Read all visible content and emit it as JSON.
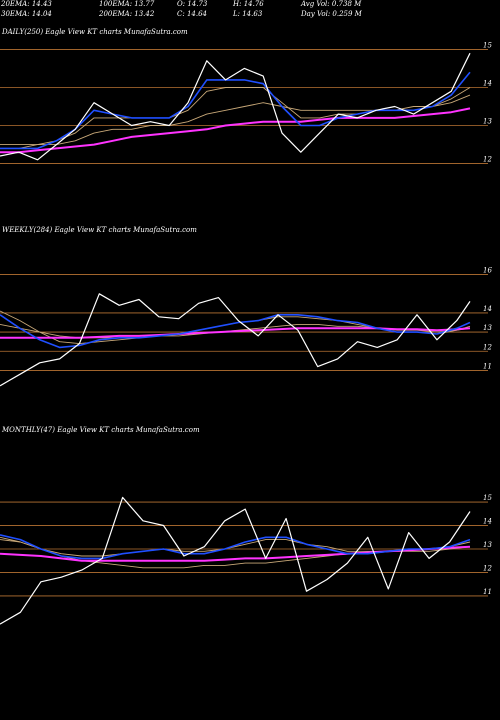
{
  "header": {
    "row1": [
      {
        "key": "ema20",
        "text": "20EMA: 14.43"
      },
      {
        "key": "ema100",
        "text": "100EMA: 13.77"
      },
      {
        "key": "open",
        "text": "O: 14.73"
      },
      {
        "key": "high",
        "text": "H: 14.76"
      },
      {
        "key": "avgvol",
        "text": "Avg Vol: 0.738 M"
      }
    ],
    "row2": [
      {
        "key": "ema30",
        "text": "30EMA: 14.04"
      },
      {
        "key": "ema200",
        "text": "200EMA: 13.42"
      },
      {
        "key": "close",
        "text": "C: 14.64"
      },
      {
        "key": "low",
        "text": "L: 14.63"
      },
      {
        "key": "dayvol",
        "text": "Day Vol: 0.259 M"
      }
    ]
  },
  "colors": {
    "background": "#000000",
    "price": "#ffffff",
    "grid": "#b87333",
    "ema_fast": "#1f4fff",
    "ema_slow": "#ff33ff",
    "ema_other": "#c8a878"
  },
  "chart_data": [
    {
      "type": "line",
      "title": "DAILY(250) Eagle  View  KT charts MunafaSutra.com",
      "ylim": [
        11.7,
        15.3
      ],
      "ticks": [
        12,
        13,
        14,
        15
      ],
      "x": [
        0,
        10,
        20,
        30,
        40,
        50,
        60,
        70,
        80,
        90,
        100,
        110,
        120,
        130,
        140,
        150,
        160,
        170,
        180,
        190,
        200,
        210,
        220,
        230,
        240,
        250
      ],
      "series": [
        {
          "name": "price",
          "values": [
            12.2,
            12.3,
            12.1,
            12.5,
            12.9,
            13.6,
            13.3,
            13.0,
            13.1,
            13.0,
            13.6,
            14.7,
            14.2,
            14.5,
            14.3,
            12.8,
            12.3,
            12.8,
            13.3,
            13.2,
            13.4,
            13.5,
            13.3,
            13.6,
            13.9,
            14.9
          ]
        },
        {
          "name": "ema20",
          "values": [
            12.4,
            12.4,
            12.4,
            12.6,
            12.9,
            13.4,
            13.3,
            13.2,
            13.2,
            13.2,
            13.5,
            14.2,
            14.2,
            14.2,
            14.1,
            13.5,
            13.0,
            13.0,
            13.2,
            13.3,
            13.4,
            13.4,
            13.4,
            13.5,
            13.8,
            14.4
          ]
        },
        {
          "name": "ema30",
          "values": [
            12.5,
            12.5,
            12.5,
            12.6,
            12.8,
            13.2,
            13.2,
            13.2,
            13.2,
            13.2,
            13.4,
            13.9,
            14.0,
            14.0,
            14.0,
            13.6,
            13.2,
            13.2,
            13.3,
            13.3,
            13.4,
            13.4,
            13.4,
            13.5,
            13.7,
            14.0
          ]
        },
        {
          "name": "ema100",
          "values": [
            12.4,
            12.4,
            12.5,
            12.5,
            12.6,
            12.8,
            12.9,
            12.9,
            13.0,
            13.0,
            13.1,
            13.3,
            13.4,
            13.5,
            13.6,
            13.5,
            13.4,
            13.4,
            13.4,
            13.4,
            13.4,
            13.4,
            13.5,
            13.5,
            13.6,
            13.8
          ]
        },
        {
          "name": "ema200",
          "values": [
            12.3,
            12.3,
            12.35,
            12.4,
            12.45,
            12.5,
            12.6,
            12.7,
            12.75,
            12.8,
            12.85,
            12.9,
            13.0,
            13.05,
            13.1,
            13.1,
            13.1,
            13.15,
            13.2,
            13.2,
            13.2,
            13.2,
            13.25,
            13.3,
            13.35,
            13.45
          ]
        }
      ]
    },
    {
      "type": "line",
      "title": "WEEKLY(284) Eagle  View  KT charts MunafaSutra.com",
      "ylim": [
        10.5,
        16.5
      ],
      "ticks": [
        11,
        12,
        13,
        14,
        16
      ],
      "x": [
        0,
        12,
        24,
        36,
        48,
        60,
        72,
        84,
        96,
        108,
        120,
        132,
        144,
        156,
        168,
        180,
        192,
        204,
        216,
        228,
        240,
        252,
        264,
        276,
        284
      ],
      "series": [
        {
          "name": "price",
          "values": [
            10.2,
            10.8,
            11.4,
            11.6,
            12.4,
            15.0,
            14.4,
            14.7,
            13.8,
            13.7,
            14.5,
            14.8,
            13.6,
            12.8,
            13.9,
            13.1,
            11.2,
            11.6,
            12.5,
            12.2,
            12.6,
            13.9,
            12.6,
            13.6,
            14.6
          ]
        },
        {
          "name": "ema20",
          "values": [
            13.9,
            13.2,
            12.6,
            12.2,
            12.3,
            12.6,
            12.7,
            12.7,
            12.8,
            12.9,
            13.1,
            13.3,
            13.5,
            13.6,
            13.9,
            13.9,
            13.8,
            13.6,
            13.5,
            13.2,
            13.0,
            13.0,
            12.9,
            13.2,
            13.5
          ]
        },
        {
          "name": "ema30",
          "values": [
            14.1,
            13.6,
            13.0,
            12.5,
            12.4,
            12.5,
            12.6,
            12.7,
            12.8,
            12.9,
            13.1,
            13.3,
            13.5,
            13.6,
            13.8,
            13.8,
            13.7,
            13.6,
            13.4,
            13.2,
            13.0,
            13.0,
            12.9,
            13.1,
            13.3
          ]
        },
        {
          "name": "ema100",
          "values": [
            13.4,
            13.2,
            13.0,
            12.8,
            12.7,
            12.7,
            12.7,
            12.7,
            12.8,
            12.8,
            12.9,
            13.0,
            13.1,
            13.2,
            13.3,
            13.4,
            13.4,
            13.3,
            13.3,
            13.2,
            13.1,
            13.1,
            13.0,
            13.1,
            13.2
          ]
        },
        {
          "name": "ema200",
          "values": [
            12.7,
            12.7,
            12.7,
            12.7,
            12.7,
            12.75,
            12.8,
            12.8,
            12.85,
            12.9,
            12.95,
            13.0,
            13.05,
            13.1,
            13.15,
            13.2,
            13.2,
            13.2,
            13.2,
            13.2,
            13.15,
            13.15,
            13.1,
            13.15,
            13.2
          ]
        }
      ]
    },
    {
      "type": "line",
      "title": "MONTHLY(47) Eagle  View  KT charts MunafaSutra.com",
      "ylim": [
        10.4,
        15.6
      ],
      "ticks": [
        11,
        12,
        13,
        14,
        15
      ],
      "x": [
        0,
        2,
        4,
        6,
        8,
        10,
        12,
        14,
        16,
        18,
        20,
        22,
        24,
        26,
        28,
        30,
        32,
        34,
        36,
        38,
        40,
        42,
        44,
        46
      ],
      "series": [
        {
          "name": "price",
          "values": [
            9.8,
            10.3,
            11.6,
            11.8,
            12.1,
            12.6,
            15.2,
            14.2,
            14.0,
            12.7,
            13.1,
            14.2,
            14.7,
            12.6,
            14.3,
            11.2,
            11.7,
            12.4,
            13.5,
            11.3,
            13.7,
            12.6,
            13.3,
            14.6
          ]
        },
        {
          "name": "ema20",
          "values": [
            13.6,
            13.4,
            13.0,
            12.7,
            12.6,
            12.6,
            12.8,
            12.9,
            13.0,
            12.8,
            12.8,
            13.0,
            13.3,
            13.5,
            13.5,
            13.2,
            13.0,
            12.8,
            12.8,
            12.9,
            13.0,
            13.0,
            13.1,
            13.4
          ]
        },
        {
          "name": "ema30",
          "values": [
            13.4,
            13.3,
            13.0,
            12.8,
            12.7,
            12.7,
            12.8,
            12.9,
            13.0,
            12.9,
            12.9,
            13.0,
            13.2,
            13.4,
            13.4,
            13.2,
            13.1,
            12.9,
            12.9,
            12.9,
            13.0,
            13.0,
            13.1,
            13.3
          ]
        },
        {
          "name": "ema100",
          "values": [
            13.5,
            13.3,
            13.0,
            12.7,
            12.5,
            12.4,
            12.3,
            12.2,
            12.2,
            12.2,
            12.3,
            12.3,
            12.4,
            12.4,
            12.5,
            12.6,
            12.7,
            12.8,
            12.8,
            12.9,
            12.9,
            12.9,
            13.0,
            13.1
          ]
        },
        {
          "name": "ema200",
          "values": [
            12.8,
            12.75,
            12.7,
            12.6,
            12.5,
            12.5,
            12.5,
            12.5,
            12.5,
            12.5,
            12.5,
            12.55,
            12.6,
            12.6,
            12.65,
            12.7,
            12.75,
            12.8,
            12.85,
            12.9,
            12.95,
            13.0,
            13.05,
            13.1
          ]
        }
      ]
    }
  ]
}
